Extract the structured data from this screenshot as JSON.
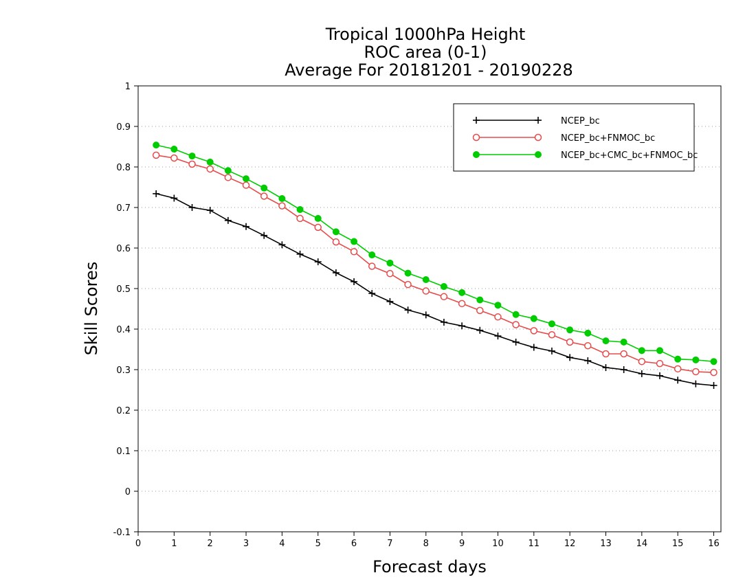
{
  "chart_data": {
    "type": "line",
    "title_lines": [
      "Tropical 1000hPa Height",
      "ROC area (0-1)",
      "Average For 20181201 - 20190228"
    ],
    "xlabel": "Forecast days",
    "ylabel": "Skill Scores",
    "xlim": [
      0,
      16.2
    ],
    "ylim": [
      -0.1,
      1.0
    ],
    "xticks": [
      0,
      1,
      2,
      3,
      4,
      5,
      6,
      7,
      8,
      9,
      10,
      11,
      12,
      13,
      14,
      15,
      16
    ],
    "yticks": [
      -0.1,
      0,
      0.1,
      0.2,
      0.3,
      0.4,
      0.5,
      0.6,
      0.7,
      0.8,
      0.9,
      1
    ],
    "ytick_labels": [
      "-0.1",
      "0",
      "0.1",
      "0.2",
      "0.3",
      "0.4",
      "0.5",
      "0.6",
      "0.7",
      "0.8",
      "0.9",
      "1"
    ],
    "grid": "dotted horizontal",
    "legend_position": "top-right",
    "x": [
      0.5,
      1.0,
      1.5,
      2.0,
      2.5,
      3.0,
      3.5,
      4.0,
      4.5,
      5.0,
      5.5,
      6.0,
      6.5,
      7.0,
      7.5,
      8.0,
      8.5,
      9.0,
      9.5,
      10.0,
      10.5,
      11.0,
      11.5,
      12.0,
      12.5,
      13.0,
      13.5,
      14.0,
      14.5,
      15.0,
      15.5,
      16.0
    ],
    "series": [
      {
        "name": "NCEP_bc",
        "color": "#000000",
        "marker": "plus",
        "values": [
          0.734,
          0.723,
          0.7,
          0.693,
          0.668,
          0.653,
          0.631,
          0.608,
          0.585,
          0.566,
          0.539,
          0.517,
          0.488,
          0.468,
          0.447,
          0.435,
          0.417,
          0.408,
          0.397,
          0.383,
          0.368,
          0.355,
          0.346,
          0.33,
          0.322,
          0.305,
          0.3,
          0.29,
          0.285,
          0.274,
          0.265,
          0.261
        ]
      },
      {
        "name": "NCEP_bc+FNMOC_bc",
        "color": "#e84a4a",
        "marker": "open-circle",
        "values": [
          0.829,
          0.822,
          0.807,
          0.795,
          0.774,
          0.755,
          0.728,
          0.704,
          0.673,
          0.651,
          0.615,
          0.591,
          0.555,
          0.537,
          0.51,
          0.494,
          0.48,
          0.463,
          0.446,
          0.43,
          0.411,
          0.396,
          0.386,
          0.368,
          0.359,
          0.339,
          0.339,
          0.32,
          0.315,
          0.302,
          0.295,
          0.293
        ]
      },
      {
        "name": "NCEP_bc+CMC_bc+FNMOC_bc",
        "color": "#00cc00",
        "marker": "filled-circle",
        "values": [
          0.854,
          0.844,
          0.827,
          0.812,
          0.791,
          0.771,
          0.748,
          0.722,
          0.695,
          0.673,
          0.64,
          0.616,
          0.583,
          0.563,
          0.538,
          0.522,
          0.505,
          0.49,
          0.472,
          0.459,
          0.436,
          0.426,
          0.413,
          0.398,
          0.39,
          0.371,
          0.368,
          0.347,
          0.347,
          0.326,
          0.324,
          0.32
        ]
      }
    ]
  }
}
